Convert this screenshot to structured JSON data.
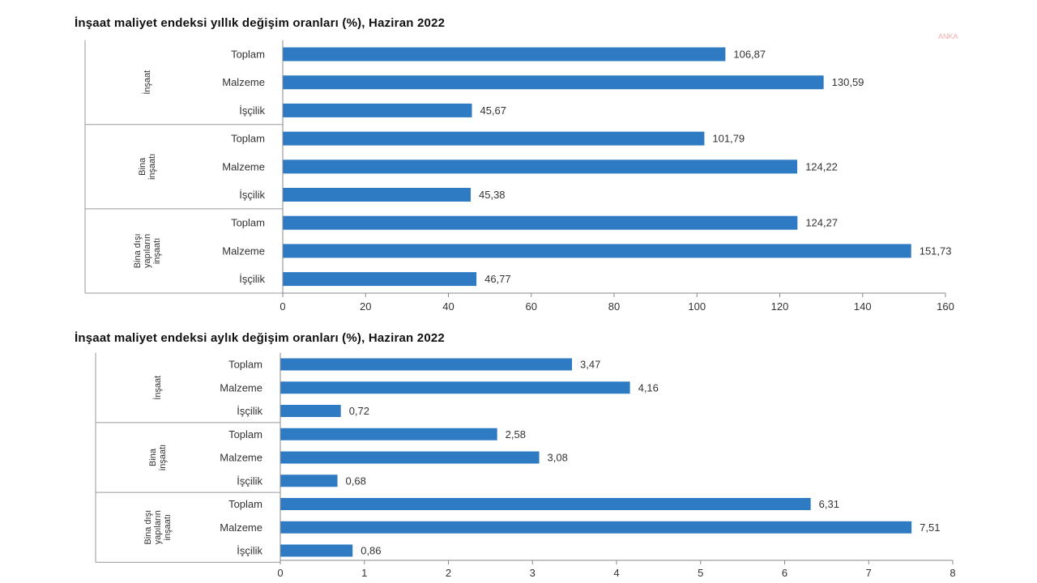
{
  "watermark": "ANKA",
  "chart_data": [
    {
      "type": "bar",
      "orientation": "horizontal",
      "title": "İnşaat maliyet endeksi yıllık değişim oranları (%), Haziran 2022",
      "xlim": [
        0,
        160
      ],
      "xticks": [
        "0",
        "20",
        "40",
        "60",
        "80",
        "100",
        "120",
        "140",
        "160"
      ],
      "grid": false,
      "bar_color": "#2e7bc4",
      "groups": [
        {
          "label": [
            "İnşaat"
          ],
          "categories": [
            "Toplam",
            "Malzeme",
            "İşçilik"
          ],
          "values": [
            106.87,
            130.59,
            45.67
          ],
          "value_labels": [
            "106,87",
            "130,59",
            "45,67"
          ]
        },
        {
          "label": [
            "Bina",
            "inşaatı"
          ],
          "categories": [
            "Toplam",
            "Malzeme",
            "İşçilik"
          ],
          "values": [
            101.79,
            124.22,
            45.38
          ],
          "value_labels": [
            "101,79",
            "124,22",
            "45,38"
          ]
        },
        {
          "label": [
            "Bina dışı",
            "yapıların",
            "inşaatı"
          ],
          "categories": [
            "Toplam",
            "Malzeme",
            "İşçilik"
          ],
          "values": [
            124.27,
            151.73,
            46.77
          ],
          "value_labels": [
            "124,27",
            "151,73",
            "46,77"
          ]
        }
      ]
    },
    {
      "type": "bar",
      "orientation": "horizontal",
      "title": "İnşaat maliyet endeksi aylık değişim oranları (%), Haziran 2022",
      "xlim": [
        0,
        8
      ],
      "xticks": [
        "0",
        "1",
        "2",
        "3",
        "4",
        "5",
        "6",
        "7",
        "8"
      ],
      "grid": false,
      "bar_color": "#2e7bc4",
      "groups": [
        {
          "label": [
            "İnşaat"
          ],
          "categories": [
            "Toplam",
            "Malzeme",
            "İşçilik"
          ],
          "values": [
            3.47,
            4.16,
            0.72
          ],
          "value_labels": [
            "3,47",
            "4,16",
            "0,72"
          ]
        },
        {
          "label": [
            "Bina",
            "inşaatı"
          ],
          "categories": [
            "Toplam",
            "Malzeme",
            "İşçilik"
          ],
          "values": [
            2.58,
            3.08,
            0.68
          ],
          "value_labels": [
            "2,58",
            "3,08",
            "0,68"
          ]
        },
        {
          "label": [
            "Bina dışı",
            "yapıların",
            "inşaatı"
          ],
          "categories": [
            "Toplam",
            "Malzeme",
            "İşçilik"
          ],
          "values": [
            6.31,
            7.51,
            0.86
          ],
          "value_labels": [
            "6,31",
            "7,51",
            "0,86"
          ]
        }
      ]
    }
  ]
}
